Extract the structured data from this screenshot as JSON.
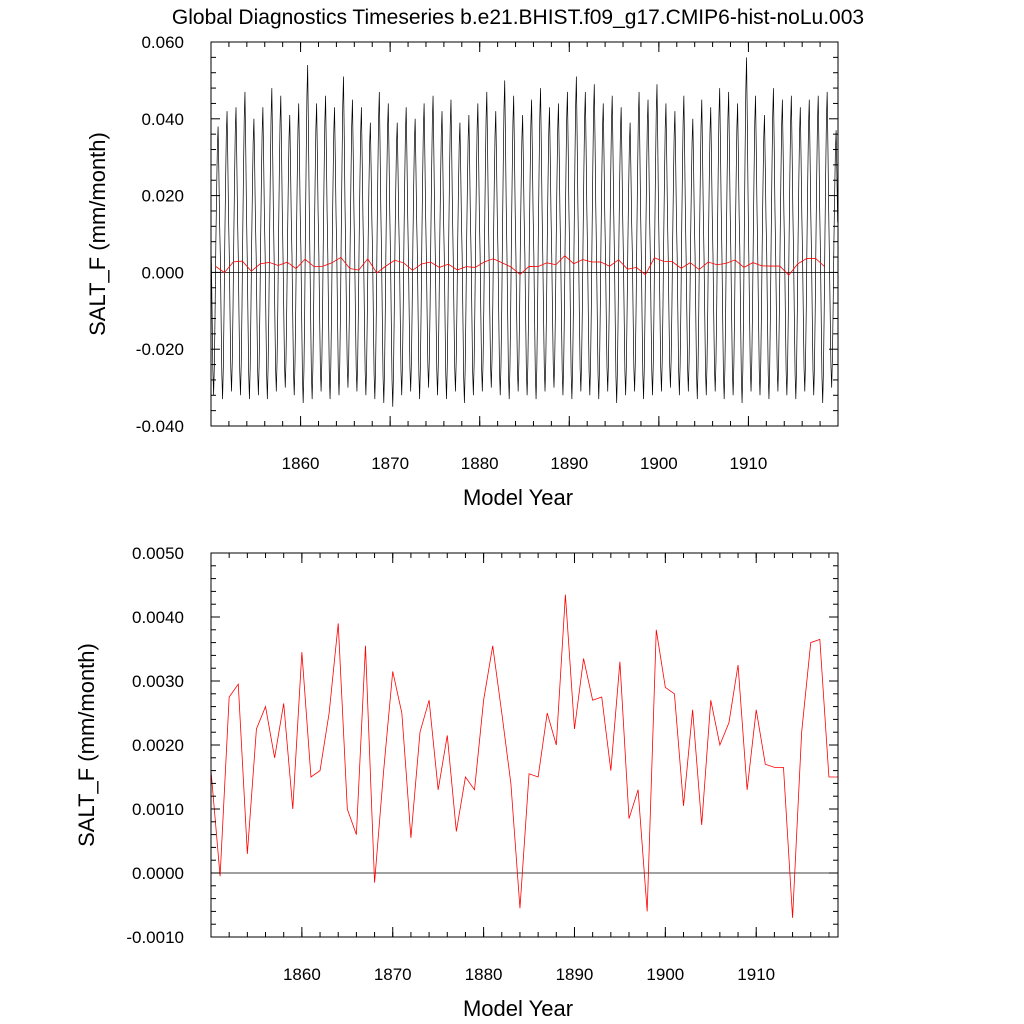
{
  "title": "Global Diagnostics Timeseries b.e21.BHIST.f09_g17.CMIP6-hist-noLu.003",
  "colors": {
    "monthly": "#000000",
    "annual": "#ff0000",
    "axis": "#000000",
    "zero_line": "#000000"
  },
  "chart_data": [
    {
      "type": "line",
      "ylabel": "SALT_F (mm/month)",
      "xlabel": "Model Year",
      "xlim": [
        1850,
        1920
      ],
      "ylim": [
        -0.04,
        0.06
      ],
      "x_ticks": [
        1860,
        1870,
        1880,
        1890,
        1900,
        1910
      ],
      "x_tick_labels": [
        "1860",
        "1870",
        "1880",
        "1890",
        "1900",
        "1910"
      ],
      "y_ticks": [
        -0.04,
        -0.02,
        0.0,
        0.02,
        0.04,
        0.06
      ],
      "y_tick_labels": [
        "-0.040",
        "-0.020",
        "0.000",
        "0.020",
        "0.040",
        "0.060"
      ],
      "zero_line": 0,
      "monthly_series": {
        "start_year": 1850,
        "points_per_year": 12,
        "years": 70,
        "peaks_approx": [
          0.038,
          0.042,
          0.043,
          0.047,
          0.04,
          0.043,
          0.048,
          0.046,
          0.041,
          0.044,
          0.054,
          0.044,
          0.046,
          0.043,
          0.051,
          0.045,
          0.043,
          0.039,
          0.047,
          0.044,
          0.039,
          0.043,
          0.04,
          0.044,
          0.046,
          0.042,
          0.045,
          0.039,
          0.041,
          0.044,
          0.047,
          0.042,
          0.05,
          0.046,
          0.041,
          0.045,
          0.048,
          0.043,
          0.044,
          0.047,
          0.051,
          0.047,
          0.049,
          0.044,
          0.046,
          0.043,
          0.039,
          0.047,
          0.045,
          0.049,
          0.044,
          0.042,
          0.046,
          0.04,
          0.045,
          0.043,
          0.048,
          0.047,
          0.044,
          0.056,
          0.046,
          0.041,
          0.048,
          0.045,
          0.046,
          0.043,
          0.045,
          0.046,
          0.047,
          0.037
        ],
        "troughs_approx": [
          -0.032,
          -0.033,
          -0.031,
          -0.032,
          -0.033,
          -0.032,
          -0.033,
          -0.031,
          -0.03,
          -0.032,
          -0.034,
          -0.033,
          -0.031,
          -0.033,
          -0.032,
          -0.03,
          -0.031,
          -0.032,
          -0.033,
          -0.034,
          -0.035,
          -0.032,
          -0.031,
          -0.033,
          -0.03,
          -0.032,
          -0.033,
          -0.031,
          -0.034,
          -0.032,
          -0.031,
          -0.03,
          -0.032,
          -0.033,
          -0.031,
          -0.032,
          -0.033,
          -0.031,
          -0.03,
          -0.032,
          -0.033,
          -0.031,
          -0.032,
          -0.033,
          -0.031,
          -0.034,
          -0.032,
          -0.031,
          -0.033,
          -0.032,
          -0.031,
          -0.03,
          -0.032,
          -0.031,
          -0.033,
          -0.032,
          -0.031,
          -0.033,
          -0.032,
          -0.034,
          -0.031,
          -0.032,
          -0.033,
          -0.031,
          -0.032,
          -0.033,
          -0.031,
          -0.032,
          -0.034,
          -0.03
        ]
      },
      "annual_series": {
        "x": [
          1850.5,
          1851.5,
          1852.5,
          1853.5,
          1854.5,
          1855.5,
          1856.5,
          1857.5,
          1858.5,
          1859.5,
          1860.5,
          1861.5,
          1862.5,
          1863.5,
          1864.5,
          1865.5,
          1866.5,
          1867.5,
          1868.5,
          1869.5,
          1870.5,
          1871.5,
          1872.5,
          1873.5,
          1874.5,
          1875.5,
          1876.5,
          1877.5,
          1878.5,
          1879.5,
          1880.5,
          1881.5,
          1882.5,
          1883.5,
          1884.5,
          1885.5,
          1886.5,
          1887.5,
          1888.5,
          1889.5,
          1890.5,
          1891.5,
          1892.5,
          1893.5,
          1894.5,
          1895.5,
          1896.5,
          1897.5,
          1898.5,
          1899.5,
          1900.5,
          1901.5,
          1902.5,
          1903.5,
          1904.5,
          1905.5,
          1906.5,
          1907.5,
          1908.5,
          1909.5,
          1910.5,
          1911.5,
          1912.5,
          1913.5,
          1914.5,
          1915.5,
          1916.5,
          1917.5,
          1918.5
        ],
        "y": [
          0.0016,
          -5e-05,
          0.00275,
          0.00295,
          0.0003,
          0.00225,
          0.0026,
          0.0018,
          0.00265,
          0.001,
          0.00345,
          0.0015,
          0.0016,
          0.0025,
          0.0039,
          0.001,
          0.0006,
          0.00355,
          -0.00015,
          0.0016,
          0.00315,
          0.0025,
          0.00055,
          0.0022,
          0.0027,
          0.0013,
          0.00215,
          0.00065,
          0.0015,
          0.0013,
          0.0027,
          0.00355,
          0.0025,
          0.0014,
          -0.00055,
          0.00155,
          0.0015,
          0.0025,
          0.002,
          0.00435,
          0.00225,
          0.00335,
          0.0027,
          0.00275,
          0.0016,
          0.0033,
          0.00085,
          0.0013,
          -0.0006,
          0.0038,
          0.0029,
          0.0028,
          0.00105,
          0.00255,
          0.00075,
          0.0027,
          0.002,
          0.00235,
          0.00325,
          0.0013,
          0.00255,
          0.0017,
          0.00165,
          0.00165,
          -0.0007,
          0.0022,
          0.0036,
          0.00365,
          0.0015
        ]
      }
    },
    {
      "type": "line",
      "ylabel": "SALT_F (mm/month)",
      "xlabel": "Model Year",
      "xlim": [
        1850,
        1919
      ],
      "ylim": [
        -0.001,
        0.005
      ],
      "x_ticks": [
        1860,
        1870,
        1880,
        1890,
        1900,
        1910
      ],
      "x_tick_labels": [
        "1860",
        "1870",
        "1880",
        "1890",
        "1900",
        "1910"
      ],
      "y_ticks": [
        -0.001,
        0.0,
        0.001,
        0.002,
        0.003,
        0.004,
        0.005
      ],
      "y_tick_labels": [
        "-0.0010",
        "0.0000",
        "0.0010",
        "0.0020",
        "0.0030",
        "0.0040",
        "0.0050"
      ],
      "zero_line": 0,
      "annual_series": {
        "x": [
          1850,
          1851,
          1852,
          1853,
          1854,
          1855,
          1856,
          1857,
          1858,
          1859,
          1860,
          1861,
          1862,
          1863,
          1864,
          1865,
          1866,
          1867,
          1868,
          1869,
          1870,
          1871,
          1872,
          1873,
          1874,
          1875,
          1876,
          1877,
          1878,
          1879,
          1880,
          1881,
          1882,
          1883,
          1884,
          1885,
          1886,
          1887,
          1888,
          1889,
          1890,
          1891,
          1892,
          1893,
          1894,
          1895,
          1896,
          1897,
          1898,
          1899,
          1900,
          1901,
          1902,
          1903,
          1904,
          1905,
          1906,
          1907,
          1908,
          1909,
          1910,
          1911,
          1912,
          1913,
          1914,
          1915,
          1916,
          1917,
          1918,
          1919
        ],
        "y": [
          0.0016,
          -5e-05,
          0.00275,
          0.00295,
          0.0003,
          0.00225,
          0.0026,
          0.0018,
          0.00265,
          0.001,
          0.00345,
          0.0015,
          0.0016,
          0.0025,
          0.0039,
          0.001,
          0.0006,
          0.00355,
          -0.00015,
          0.0016,
          0.00315,
          0.0025,
          0.00055,
          0.0022,
          0.0027,
          0.0013,
          0.00215,
          0.00065,
          0.0015,
          0.0013,
          0.0027,
          0.00355,
          0.0025,
          0.0014,
          -0.00055,
          0.00155,
          0.0015,
          0.0025,
          0.002,
          0.00435,
          0.00225,
          0.00335,
          0.0027,
          0.00275,
          0.0016,
          0.0033,
          0.00085,
          0.0013,
          -0.0006,
          0.0038,
          0.0029,
          0.0028,
          0.00105,
          0.00255,
          0.00075,
          0.0027,
          0.002,
          0.00235,
          0.00325,
          0.0013,
          0.00255,
          0.0017,
          0.00165,
          0.00165,
          -0.0007,
          0.0022,
          0.0036,
          0.00365,
          0.0015,
          0.0015
        ]
      }
    }
  ]
}
